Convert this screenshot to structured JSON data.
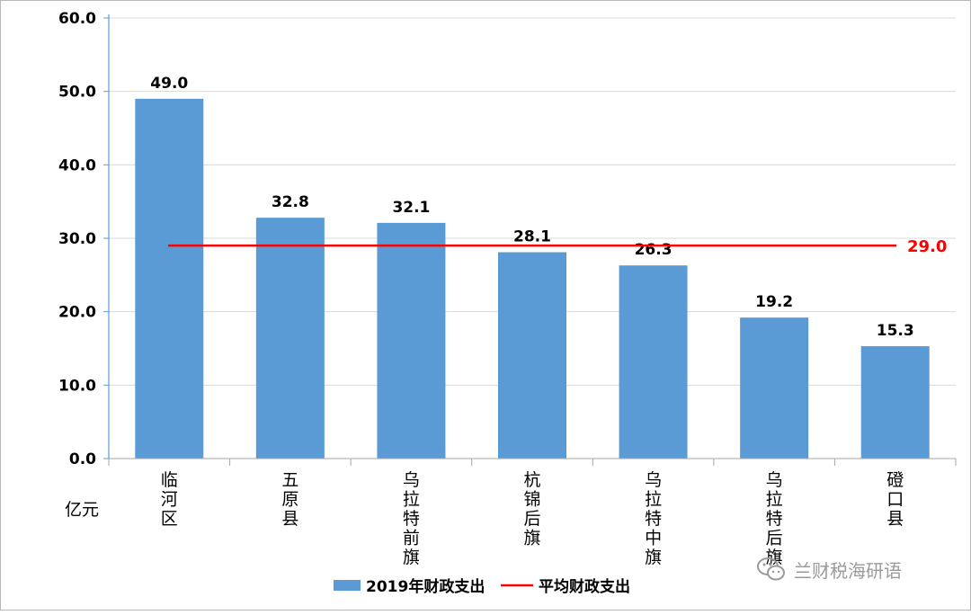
{
  "chart_data": {
    "type": "bar",
    "categories": [
      "临河区",
      "五原县",
      "乌拉特前旗",
      "杭锦后旗",
      "乌拉特中旗",
      "乌拉特后旗",
      "磴口县"
    ],
    "series": [
      {
        "name": "2019年财政支出",
        "values": [
          49.0,
          32.8,
          32.1,
          28.1,
          26.3,
          19.2,
          15.3
        ],
        "color": "#5b9bd5"
      }
    ],
    "average_line": {
      "name": "平均财政支出",
      "value": 29.0,
      "label": "29.0",
      "color": "#ff0000"
    },
    "value_labels": [
      "49.0",
      "32.8",
      "32.1",
      "28.1",
      "26.3",
      "19.2",
      "15.3"
    ],
    "y_ticks": [
      "0.0",
      "10.0",
      "20.0",
      "30.0",
      "40.0",
      "50.0",
      "60.0"
    ],
    "ylim": [
      0,
      60
    ],
    "ylabel": "亿元",
    "grid": true,
    "legend_position": "bottom"
  },
  "watermark": {
    "text": "兰财税海研语",
    "icon": "wechat-icon"
  }
}
